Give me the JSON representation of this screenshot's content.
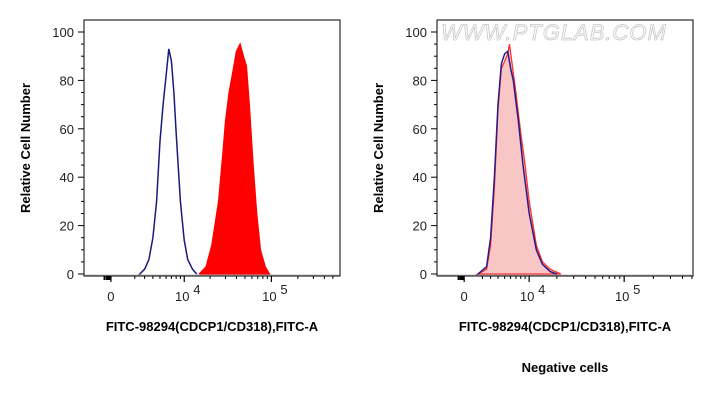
{
  "watermark": "WWW.PTGLAB.COM",
  "chart_data": [
    {
      "type": "area",
      "xscale": "biexponential",
      "xlabel": "FITC-98294(CDCP1/CD318),FITC-A",
      "ylabel": "Relative Cell Number",
      "ylim": [
        0,
        100
      ],
      "yticks": [
        "0",
        "20",
        "40",
        "60",
        "80",
        "100"
      ],
      "xticks": [
        {
          "label": "0",
          "value": 0
        },
        {
          "label": "10",
          "exp": "4",
          "value": 10000
        },
        {
          "label": "10",
          "exp": "5",
          "value": 100000
        }
      ],
      "caption": "",
      "series": [
        {
          "style": "outline",
          "color": "#1a1a7a",
          "x": [
            2500,
            3000,
            3500,
            4000,
            4500,
            5000,
            5500,
            6000,
            6500,
            7000,
            7500,
            8000,
            9000,
            10000,
            11000,
            12500,
            14000
          ],
          "y": [
            0,
            2,
            6,
            15,
            30,
            55,
            70,
            82,
            93,
            88,
            75,
            58,
            30,
            14,
            6,
            2,
            0
          ]
        },
        {
          "style": "filled",
          "color": "#ff0000",
          "x": [
            15000,
            18000,
            21000,
            25000,
            28000,
            30000,
            33000,
            37000,
            40000,
            44000,
            48000,
            52000,
            56000,
            62000,
            68000,
            75000,
            85000,
            95000
          ],
          "y": [
            0,
            3,
            12,
            30,
            50,
            63,
            75,
            85,
            92,
            95,
            90,
            86,
            70,
            45,
            25,
            10,
            3,
            0
          ]
        }
      ]
    },
    {
      "type": "area",
      "xscale": "biexponential",
      "xlabel": "FITC-98294(CDCP1/CD318),FITC-A",
      "ylabel": "Relative Cell Number",
      "ylim": [
        0,
        100
      ],
      "yticks": [
        "0",
        "20",
        "40",
        "60",
        "80",
        "100"
      ],
      "xticks": [
        {
          "label": "0",
          "value": 0
        },
        {
          "label": "10",
          "exp": "4",
          "value": 10000
        },
        {
          "label": "10",
          "exp": "5",
          "value": 100000
        }
      ],
      "caption": "Negative cells",
      "series": [
        {
          "style": "filled",
          "color": "#ff3030",
          "fill": "#f9c6c6",
          "x": [
            1500,
            2500,
            3000,
            3500,
            4000,
            4500,
            5000,
            5500,
            5800,
            6200,
            7000,
            8000,
            9000,
            10000,
            12000,
            14000,
            17000,
            22000
          ],
          "y": [
            0,
            2,
            12,
            36,
            68,
            85,
            88,
            91,
            95,
            88,
            75,
            58,
            45,
            30,
            12,
            5,
            2,
            0
          ]
        },
        {
          "style": "outline",
          "color": "#2a1a8a",
          "x": [
            1500,
            2500,
            3000,
            3500,
            4000,
            4500,
            5000,
            5500,
            6000,
            6500,
            7500,
            8500,
            10000,
            12000,
            14000,
            17000,
            20000
          ],
          "y": [
            0,
            3,
            15,
            40,
            70,
            87,
            91,
            92,
            85,
            80,
            63,
            45,
            25,
            10,
            4,
            1,
            0
          ]
        }
      ]
    }
  ]
}
